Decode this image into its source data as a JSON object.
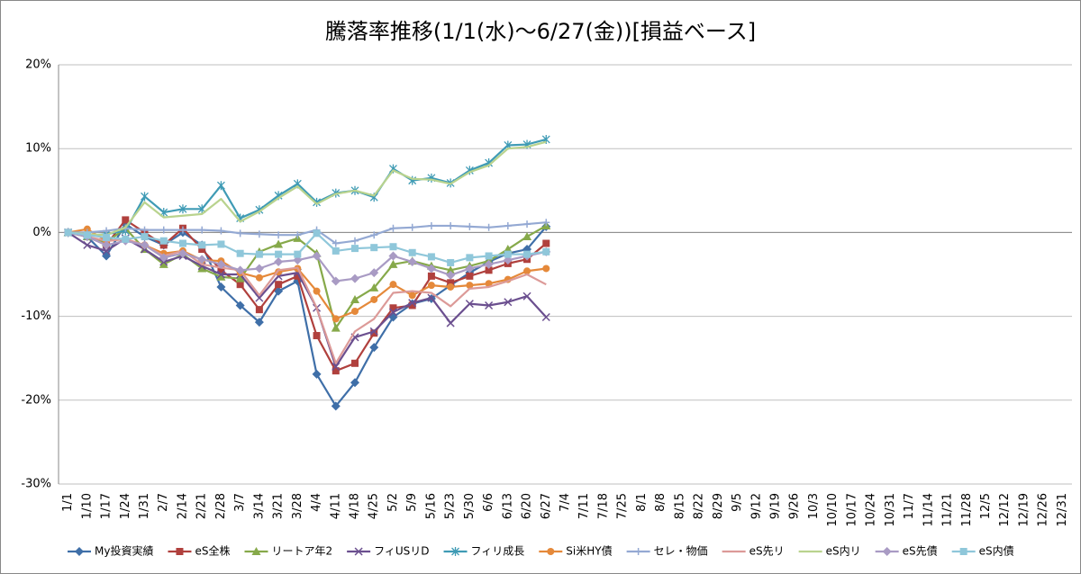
{
  "chart_data": {
    "type": "line",
    "title": "騰落率推移(1/1(水)～6/27(金))[損益ベース]",
    "categories": [
      "1/1",
      "1/10",
      "1/17",
      "1/24",
      "1/31",
      "2/7",
      "2/14",
      "2/21",
      "2/28",
      "3/7",
      "3/14",
      "3/21",
      "3/28",
      "4/4",
      "4/11",
      "4/18",
      "4/25",
      "5/2",
      "5/9",
      "5/16",
      "5/23",
      "5/30",
      "6/6",
      "6/13",
      "6/20",
      "6/27",
      "7/4",
      "7/11",
      "7/18",
      "7/25",
      "8/1",
      "8/8",
      "8/15",
      "8/22",
      "8/29",
      "9/5",
      "9/12",
      "9/19",
      "9/26",
      "10/3",
      "10/10",
      "10/17",
      "10/24",
      "10/31",
      "11/7",
      "11/14",
      "11/21",
      "11/28",
      "12/5",
      "12/12",
      "12/19",
      "12/26",
      "12/31"
    ],
    "ylim": [
      -30,
      20
    ],
    "yticks": [
      {
        "value": -30,
        "label": "-30%"
      },
      {
        "value": -20,
        "label": "-20%"
      },
      {
        "value": -10,
        "label": "-10%"
      },
      {
        "value": 0,
        "label": "0%"
      },
      {
        "value": 10,
        "label": "10%"
      },
      {
        "value": 20,
        "label": "20%"
      }
    ],
    "grid": true,
    "legend": "bottom",
    "series": [
      {
        "name": "My投資実績",
        "color": "#3f6fa8",
        "marker": "diamond",
        "values": [
          0,
          -0.5,
          -2.8,
          1.0,
          -0.5,
          -1.5,
          0,
          -1.5,
          -6.5,
          -8.7,
          -10.7,
          -7,
          -5.8,
          -16.9,
          -20.7,
          -17.9,
          -13.7,
          -10.1,
          -8.5,
          -7.9,
          -6.3,
          -4.8,
          -3.5,
          -2.5,
          -2,
          0.7,
          null,
          null,
          null,
          null,
          null,
          null,
          null,
          null,
          null,
          null,
          null,
          null,
          null,
          null,
          null,
          null,
          null,
          null,
          null,
          null,
          null,
          null,
          null,
          null,
          null,
          null,
          null
        ]
      },
      {
        "name": "eS全株",
        "color": "#b0403d",
        "marker": "square",
        "values": [
          0,
          -0.5,
          -1.5,
          1.5,
          0,
          -1.5,
          0.5,
          -2,
          -4.5,
          -6.2,
          -9.2,
          -6.2,
          -5.2,
          -12.3,
          -16.5,
          -15.6,
          -12,
          -9,
          -8.7,
          -5.2,
          -6,
          -5.2,
          -4.5,
          -3.7,
          -3.2,
          -1.3,
          null,
          null,
          null,
          null,
          null,
          null,
          null,
          null,
          null,
          null,
          null,
          null,
          null,
          null,
          null,
          null,
          null,
          null,
          null,
          null,
          null,
          null,
          null,
          null,
          null,
          null,
          null
        ]
      },
      {
        "name": "リートア年2",
        "color": "#86a94a",
        "marker": "triangle",
        "values": [
          0,
          -0.5,
          -1.2,
          0.5,
          -2,
          -3.8,
          -2.6,
          -4.3,
          -5.3,
          -5.5,
          -2.3,
          -1.4,
          -0.7,
          -2.5,
          -11.4,
          -8,
          -6.6,
          -3.8,
          -3.4,
          -4,
          -4.5,
          -4,
          -3.4,
          -2,
          -0.5,
          0.8,
          null,
          null,
          null,
          null,
          null,
          null,
          null,
          null,
          null,
          null,
          null,
          null,
          null,
          null,
          null,
          null,
          null,
          null,
          null,
          null,
          null,
          null,
          null,
          null,
          null,
          null,
          null
        ]
      },
      {
        "name": "フィUSリD",
        "color": "#6b4f8f",
        "marker": "x",
        "values": [
          0,
          -1.5,
          -2.2,
          -0.7,
          -2,
          -3.5,
          -2.8,
          -4,
          -5,
          -5,
          -7.8,
          -5.2,
          -4.8,
          -9,
          -16,
          -12.5,
          -11.8,
          -9.5,
          -8.4,
          -7.8,
          -10.8,
          -8.5,
          -8.7,
          -8.3,
          -7.6,
          -10.1,
          null,
          null,
          null,
          null,
          null,
          null,
          null,
          null,
          null,
          null,
          null,
          null,
          null,
          null,
          null,
          null,
          null,
          null,
          null,
          null,
          null,
          null,
          null,
          null,
          null,
          null,
          null
        ]
      },
      {
        "name": "フィリ成長",
        "color": "#3f9bb5",
        "marker": "star",
        "values": [
          0,
          -0.4,
          -0.2,
          0.2,
          4.3,
          2.4,
          2.8,
          2.8,
          5.6,
          1.7,
          2.7,
          4.4,
          5.8,
          3.6,
          4.7,
          5,
          4.2,
          7.6,
          6.2,
          6.5,
          5.9,
          7.4,
          8.3,
          10.4,
          10.5,
          11.1,
          null,
          null,
          null,
          null,
          null,
          null,
          null,
          null,
          null,
          null,
          null,
          null,
          null,
          null,
          null,
          null,
          null,
          null,
          null,
          null,
          null,
          null,
          null,
          null,
          null,
          null,
          null
        ]
      },
      {
        "name": "Si米HY債",
        "color": "#e5893a",
        "marker": "circle",
        "values": [
          0,
          0.4,
          -1,
          -0.8,
          -1.5,
          -2.5,
          -2.2,
          -3.3,
          -3.4,
          -4.8,
          -5.4,
          -4.7,
          -4.3,
          -7,
          -10.3,
          -9.4,
          -8,
          -6.2,
          -7.5,
          -6.3,
          -6.5,
          -6.3,
          -6.1,
          -5.6,
          -4.6,
          -4.3,
          null,
          null,
          null,
          null,
          null,
          null,
          null,
          null,
          null,
          null,
          null,
          null,
          null,
          null,
          null,
          null,
          null,
          null,
          null,
          null,
          null,
          null,
          null,
          null,
          null,
          null,
          null
        ]
      },
      {
        "name": "セレ・物価",
        "color": "#94a9d3",
        "marker": "plus",
        "values": [
          0,
          0,
          0.2,
          0.5,
          0.3,
          0.3,
          0.3,
          0.3,
          0.2,
          -0.1,
          -0.2,
          -0.3,
          -0.3,
          0.3,
          -1.3,
          -1.0,
          -0.3,
          0.5,
          0.6,
          0.8,
          0.8,
          0.7,
          0.6,
          0.8,
          1.0,
          1.2,
          null,
          null,
          null,
          null,
          null,
          null,
          null,
          null,
          null,
          null,
          null,
          null,
          null,
          null,
          null,
          null,
          null,
          null,
          null,
          null,
          null,
          null,
          null,
          null,
          null,
          null,
          null
        ]
      },
      {
        "name": "eS先リ",
        "color": "#dc9a98",
        "marker": "none",
        "values": [
          0,
          -0.5,
          -1,
          -0.8,
          -1.5,
          -2.8,
          -2.2,
          -3.8,
          -4.2,
          -4.5,
          -7.5,
          -4.5,
          -4.2,
          -9,
          -15.6,
          -11.8,
          -10.3,
          -7.2,
          -7,
          -7.2,
          -8.8,
          -6.7,
          -6.5,
          -5.8,
          -5,
          -6.2,
          null,
          null,
          null,
          null,
          null,
          null,
          null,
          null,
          null,
          null,
          null,
          null,
          null,
          null,
          null,
          null,
          null,
          null,
          null,
          null,
          null,
          null,
          null,
          null,
          null,
          null,
          null
        ]
      },
      {
        "name": "eS内リ",
        "color": "#b9d38e",
        "marker": "none",
        "values": [
          0,
          -0.2,
          -0.3,
          0.6,
          3.6,
          1.8,
          2.0,
          2.2,
          4.0,
          1.3,
          2.5,
          4.1,
          5.5,
          3.4,
          4.6,
          5.0,
          4.4,
          7.4,
          6.4,
          6.3,
          5.8,
          7.2,
          8.0,
          10.0,
          10.2,
          10.8,
          null,
          null,
          null,
          null,
          null,
          null,
          null,
          null,
          null,
          null,
          null,
          null,
          null,
          null,
          null,
          null,
          null,
          null,
          null,
          null,
          null,
          null,
          null,
          null,
          null,
          null,
          null
        ]
      },
      {
        "name": "eS先債",
        "color": "#a99bc4",
        "marker": "diamond",
        "values": [
          0,
          -0.5,
          -1.5,
          -1,
          -1.5,
          -3,
          -2.5,
          -3.2,
          -3.8,
          -4.5,
          -4.3,
          -3.5,
          -3.3,
          -2.8,
          -5.8,
          -5.5,
          -4.8,
          -2.8,
          -3.5,
          -4.3,
          -5.1,
          -4.3,
          -3.8,
          -3.3,
          -2.8,
          -2.3,
          null,
          null,
          null,
          null,
          null,
          null,
          null,
          null,
          null,
          null,
          null,
          null,
          null,
          null,
          null,
          null,
          null,
          null,
          null,
          null,
          null,
          null,
          null,
          null,
          null,
          null,
          null
        ]
      },
      {
        "name": "eS内債",
        "color": "#8fc7da",
        "marker": "square",
        "values": [
          0,
          -0.3,
          -0.6,
          -0.8,
          -0.5,
          -1,
          -1.3,
          -1.5,
          -1.4,
          -2.5,
          -2.6,
          -2.6,
          -2.6,
          -0.1,
          -2.2,
          -1.9,
          -1.8,
          -1.7,
          -2.4,
          -2.9,
          -3.6,
          -3.0,
          -2.8,
          -2.6,
          -2.6,
          -2.3,
          null,
          null,
          null,
          null,
          null,
          null,
          null,
          null,
          null,
          null,
          null,
          null,
          null,
          null,
          null,
          null,
          null,
          null,
          null,
          null,
          null,
          null,
          null,
          null,
          null,
          null,
          null
        ]
      }
    ]
  }
}
